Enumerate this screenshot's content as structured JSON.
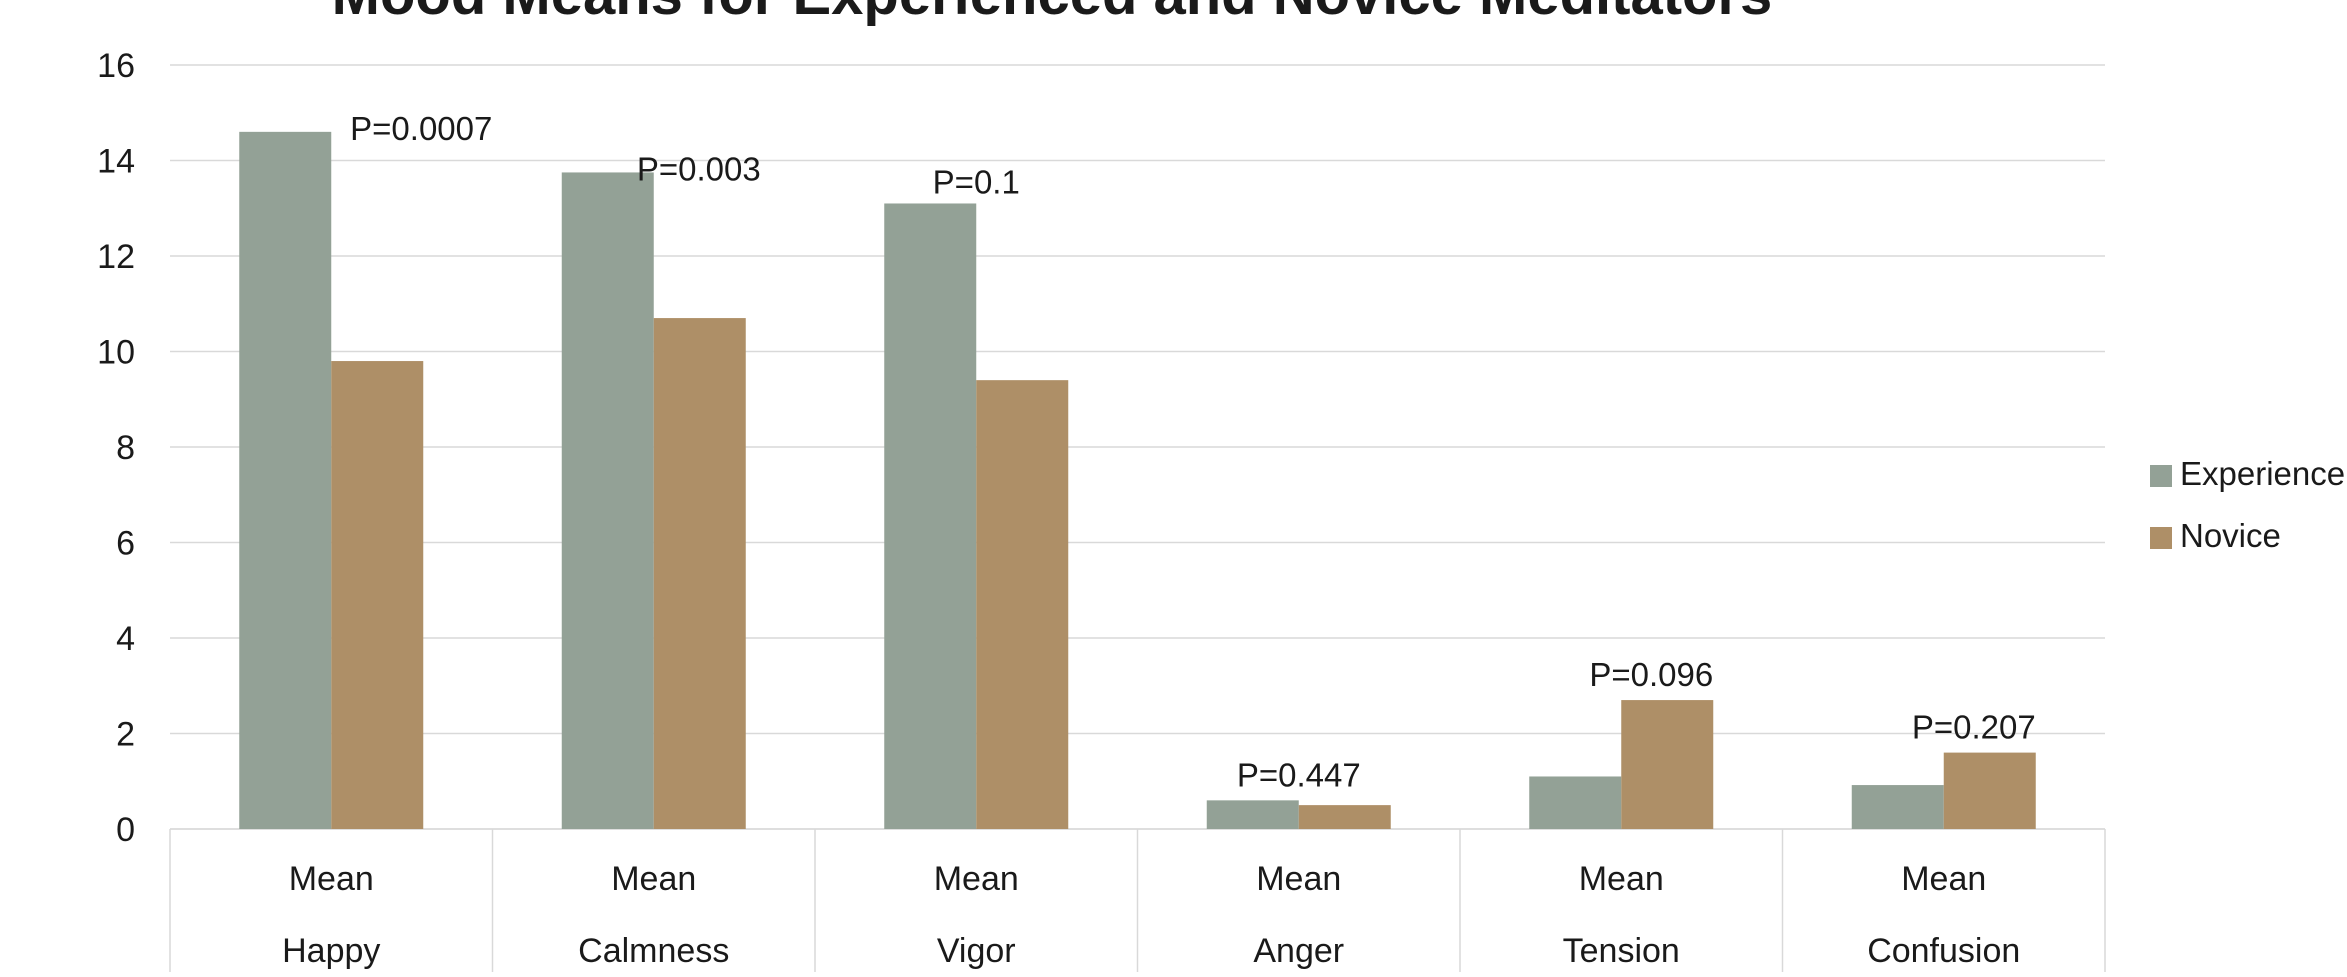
{
  "chart_data": {
    "type": "bar",
    "title": "Mood Means for Experienced and Novice Meditators",
    "categories": [
      [
        "Mean",
        "Happy"
      ],
      [
        "Mean",
        "Calmness"
      ],
      [
        "Mean",
        "Vigor"
      ],
      [
        "Mean",
        "Anger"
      ],
      [
        "Mean",
        "Tension"
      ],
      [
        "Mean",
        "Confusion"
      ]
    ],
    "series": [
      {
        "name": "Experience",
        "color": "#93a196",
        "values": [
          14.6,
          13.75,
          13.1,
          0.6,
          1.1,
          0.92
        ]
      },
      {
        "name": "Novice",
        "color": "#ae8f67",
        "values": [
          9.8,
          10.7,
          9.4,
          0.5,
          2.7,
          1.6
        ]
      }
    ],
    "annotations": [
      "P=0.0007",
      "P=0.003",
      "P=0.1",
      "P=0.447",
      "P=0.096",
      "P=0.207"
    ],
    "ylim": [
      0,
      16
    ],
    "yticks": [
      "0",
      "2",
      "4",
      "6",
      "8",
      "10",
      "12",
      "14",
      "16"
    ],
    "grid": true,
    "legend_position": "right"
  }
}
